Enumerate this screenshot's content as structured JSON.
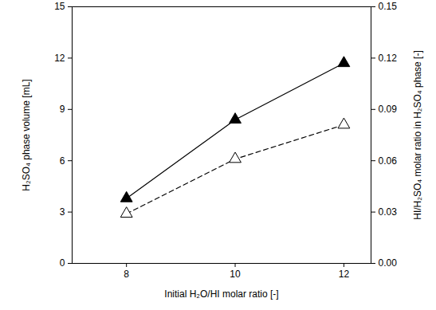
{
  "chart_data": {
    "type": "line",
    "x": [
      8,
      10,
      12
    ],
    "xlabel": "Initial H₂O/HI molar ratio [-]",
    "ylabel": "H₂SO₄ phase volume [mL]",
    "y2label": "HI/H₂SO₄ molar ratio in H₂SO₄ phase [-]",
    "xlim": [
      7,
      12.5
    ],
    "xticks": [
      8,
      10,
      12
    ],
    "ylim": [
      0,
      15
    ],
    "yticks": [
      0,
      3,
      6,
      9,
      12,
      15
    ],
    "y2lim": [
      0,
      0.15
    ],
    "y2ticks": [
      {
        "value": 0,
        "label": "0.00"
      },
      0.03,
      0.06,
      0.09,
      0.12,
      0.15
    ],
    "grid": false,
    "series": [
      {
        "color": "#000000",
        "marker": "triangle",
        "line_style": "solid",
        "values": [
          3.8,
          8.4,
          11.7
        ]
      },
      {
        "color": "#000000",
        "marker": "triangle-open",
        "line_style": "dashed",
        "axis": "y2",
        "values": [
          0.029,
          0.061,
          0.081
        ]
      }
    ]
  }
}
